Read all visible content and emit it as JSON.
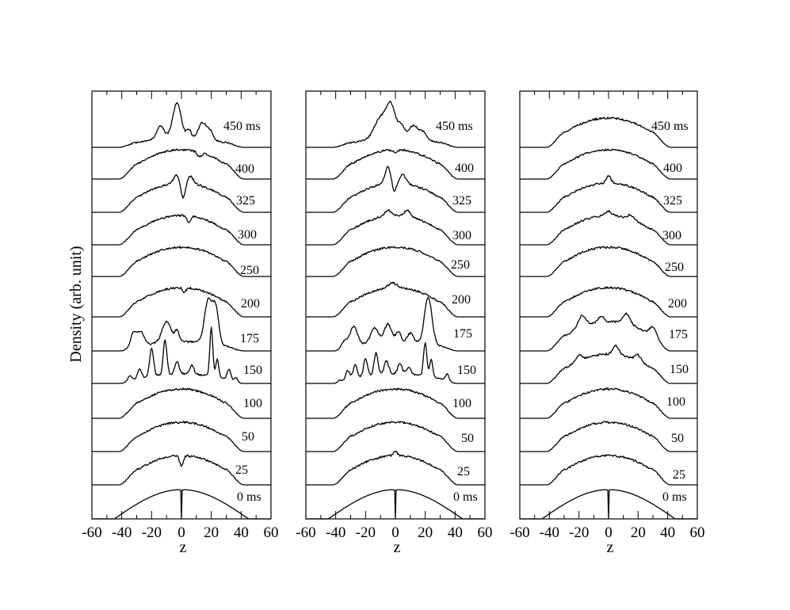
{
  "chart_data": {
    "type": "line",
    "ylabel": "Density (arb. unit)",
    "xlabel": "z",
    "xlim": [
      -60,
      60
    ],
    "xticks": [
      -60,
      -40,
      -20,
      0,
      20,
      40,
      60
    ],
    "tick_labels": [
      "-60",
      "-40",
      "-20",
      "0",
      "20",
      "40",
      "60"
    ],
    "grid": false,
    "panels": [
      {
        "traces": [
          {
            "time_ms": 0,
            "label": "0 ms",
            "profile": "initial-with-notch",
            "peaks": []
          },
          {
            "time_ms": 25,
            "label": "25",
            "profile": "smooth",
            "peaks": [
              {
                "z": 0,
                "a": -0.35,
                "w": 1.2
              }
            ]
          },
          {
            "time_ms": 50,
            "label": "50",
            "profile": "smooth",
            "peaks": []
          },
          {
            "time_ms": 100,
            "label": "100",
            "profile": "smooth",
            "peaks": []
          },
          {
            "time_ms": 150,
            "label": "150",
            "profile": "fragmented",
            "peaks": [
              {
                "z": -35,
                "a": 0.22,
                "w": 1.2
              },
              {
                "z": -28,
                "a": 0.3,
                "w": 1.3
              },
              {
                "z": -20,
                "a": 0.95,
                "w": 1.3
              },
              {
                "z": -11,
                "a": 1.2,
                "w": 1.2
              },
              {
                "z": -3,
                "a": 0.45,
                "w": 1.4
              },
              {
                "z": 7,
                "a": 0.3,
                "w": 1.5
              },
              {
                "z": 20,
                "a": 1.65,
                "w": 1.0
              },
              {
                "z": 24,
                "a": 0.6,
                "w": 1.0
              },
              {
                "z": 32,
                "a": 0.35,
                "w": 1.2
              },
              {
                "z": 37,
                "a": 0.3,
                "w": 1.0
              }
            ]
          },
          {
            "time_ms": 175,
            "label": "175",
            "profile": "fragmented",
            "peaks": [
              {
                "z": -32,
                "a": 0.5,
                "w": 2.2
              },
              {
                "z": -27,
                "a": 0.45,
                "w": 2.0
              },
              {
                "z": -10,
                "a": 0.7,
                "w": 3.0
              },
              {
                "z": -3,
                "a": 0.35,
                "w": 1.5
              },
              {
                "z": 18,
                "a": 1.5,
                "w": 2.5
              },
              {
                "z": 23,
                "a": 1.2,
                "w": 2.0
              }
            ]
          },
          {
            "time_ms": 200,
            "label": "200",
            "profile": "smooth",
            "peaks": [
              {
                "z": 2,
                "a": -0.15,
                "w": 1.2
              }
            ]
          },
          {
            "time_ms": 250,
            "label": "250",
            "profile": "smooth",
            "peaks": []
          },
          {
            "time_ms": 300,
            "label": "300",
            "profile": "smooth",
            "peaks": [
              {
                "z": 5,
                "a": -0.25,
                "w": 1.2
              }
            ]
          },
          {
            "time_ms": 325,
            "label": "325",
            "profile": "smooth",
            "peaks": [
              {
                "z": -3,
                "a": 0.3,
                "w": 2.0
              },
              {
                "z": 1,
                "a": -0.55,
                "w": 1.5
              },
              {
                "z": 6,
                "a": 0.25,
                "w": 2.0
              }
            ]
          },
          {
            "time_ms": 400,
            "label": "400",
            "profile": "smooth",
            "peaks": [
              {
                "z": 12,
                "a": -0.15,
                "w": 1.5
              }
            ]
          },
          {
            "time_ms": 450,
            "label": "450 ms",
            "profile": "fragmented",
            "peaks": [
              {
                "z": -14,
                "a": 0.45,
                "w": 2.5
              },
              {
                "z": -3,
                "a": 1.2,
                "w": 2.8
              },
              {
                "z": 5,
                "a": 0.3,
                "w": 1.5
              },
              {
                "z": 14,
                "a": 0.55,
                "w": 2.5
              },
              {
                "z": 19,
                "a": 0.3,
                "w": 2.0
              }
            ]
          }
        ]
      },
      {
        "traces": [
          {
            "time_ms": 0,
            "label": "0 ms",
            "profile": "initial-with-notch",
            "peaks": []
          },
          {
            "time_ms": 25,
            "label": "25",
            "profile": "smooth",
            "peaks": [
              {
                "z": 0,
                "a": 0.15,
                "w": 1.2
              }
            ]
          },
          {
            "time_ms": 50,
            "label": "50",
            "profile": "smooth",
            "peaks": []
          },
          {
            "time_ms": 100,
            "label": "100",
            "profile": "smooth",
            "peaks": []
          },
          {
            "time_ms": 150,
            "label": "150",
            "profile": "fragmented",
            "peaks": [
              {
                "z": -38,
                "a": 0.2,
                "w": 1.2
              },
              {
                "z": -32,
                "a": 0.3,
                "w": 1.3
              },
              {
                "z": -27,
                "a": 0.45,
                "w": 1.3
              },
              {
                "z": -20,
                "a": 0.6,
                "w": 1.3
              },
              {
                "z": -13,
                "a": 0.75,
                "w": 1.3
              },
              {
                "z": -6,
                "a": 0.45,
                "w": 1.5
              },
              {
                "z": 3,
                "a": 0.35,
                "w": 1.5
              },
              {
                "z": 9,
                "a": 0.25,
                "w": 1.5
              },
              {
                "z": 20,
                "a": 1.15,
                "w": 1.1
              },
              {
                "z": 24,
                "a": 0.6,
                "w": 1.0
              },
              {
                "z": 35,
                "a": 0.3,
                "w": 1.2
              }
            ]
          },
          {
            "time_ms": 175,
            "label": "175",
            "profile": "fragmented",
            "peaks": [
              {
                "z": -35,
                "a": 0.3,
                "w": 2.0
              },
              {
                "z": -28,
                "a": 0.65,
                "w": 2.5
              },
              {
                "z": -14,
                "a": 0.5,
                "w": 2.5
              },
              {
                "z": -5,
                "a": 0.6,
                "w": 2.5
              },
              {
                "z": 2,
                "a": 0.35,
                "w": 1.5
              },
              {
                "z": 10,
                "a": 0.3,
                "w": 2.0
              },
              {
                "z": 22,
                "a": 1.6,
                "w": 2.5
              }
            ]
          },
          {
            "time_ms": 200,
            "label": "200",
            "profile": "smooth",
            "peaks": [
              {
                "z": -2,
                "a": 0.15,
                "w": 3.0
              }
            ]
          },
          {
            "time_ms": 250,
            "label": "250",
            "profile": "smooth",
            "peaks": []
          },
          {
            "time_ms": 300,
            "label": "300",
            "profile": "smooth",
            "peaks": [
              {
                "z": -5,
                "a": 0.2,
                "w": 2.0
              },
              {
                "z": 8,
                "a": 0.2,
                "w": 2.0
              }
            ]
          },
          {
            "time_ms": 325,
            "label": "325",
            "profile": "smooth",
            "peaks": [
              {
                "z": -5,
                "a": 0.55,
                "w": 2.0
              },
              {
                "z": -1,
                "a": -0.35,
                "w": 1.3
              },
              {
                "z": 5,
                "a": 0.3,
                "w": 2.0
              }
            ]
          },
          {
            "time_ms": 400,
            "label": "400",
            "profile": "smooth",
            "peaks": [
              {
                "z": 0,
                "a": -0.1,
                "w": 1.2
              }
            ]
          },
          {
            "time_ms": 450,
            "label": "450 ms",
            "profile": "fragmented",
            "peaks": [
              {
                "z": -10,
                "a": 0.7,
                "w": 4.0
              },
              {
                "z": -3,
                "a": 1.05,
                "w": 3.0
              },
              {
                "z": 4,
                "a": 0.4,
                "w": 2.5
              },
              {
                "z": 12,
                "a": 0.45,
                "w": 2.5
              },
              {
                "z": 18,
                "a": 0.3,
                "w": 2.5
              }
            ]
          }
        ]
      },
      {
        "traces": [
          {
            "time_ms": 0,
            "label": "0 ms",
            "profile": "initial-with-notch",
            "peaks": []
          },
          {
            "time_ms": 25,
            "label": "25",
            "profile": "smooth",
            "peaks": []
          },
          {
            "time_ms": 50,
            "label": "50",
            "profile": "smooth",
            "peaks": []
          },
          {
            "time_ms": 100,
            "label": "100",
            "profile": "smooth",
            "peaks": []
          },
          {
            "time_ms": 150,
            "label": "150",
            "profile": "smooth",
            "peaks": [
              {
                "z": -20,
                "a": 0.2,
                "w": 2.0
              },
              {
                "z": 5,
                "a": 0.3,
                "w": 2.0
              },
              {
                "z": 20,
                "a": 0.2,
                "w": 2.0
              }
            ]
          },
          {
            "time_ms": 175,
            "label": "175",
            "profile": "smooth",
            "peaks": [
              {
                "z": -18,
                "a": 0.4,
                "w": 2.5
              },
              {
                "z": -5,
                "a": 0.2,
                "w": 2.0
              },
              {
                "z": 12,
                "a": 0.35,
                "w": 2.5
              },
              {
                "z": 30,
                "a": 0.3,
                "w": 2.5
              }
            ]
          },
          {
            "time_ms": 200,
            "label": "200",
            "profile": "smooth",
            "peaks": []
          },
          {
            "time_ms": 250,
            "label": "250",
            "profile": "smooth",
            "peaks": []
          },
          {
            "time_ms": 300,
            "label": "300",
            "profile": "smooth",
            "peaks": [
              {
                "z": 0,
                "a": 0.15,
                "w": 2.0
              },
              {
                "z": 15,
                "a": 0.15,
                "w": 2.0
              }
            ]
          },
          {
            "time_ms": 325,
            "label": "325",
            "profile": "smooth",
            "peaks": [
              {
                "z": 0,
                "a": 0.25,
                "w": 1.5
              }
            ]
          },
          {
            "time_ms": 400,
            "label": "400",
            "profile": "smooth",
            "peaks": []
          },
          {
            "time_ms": 450,
            "label": "450 ms",
            "profile": "smooth",
            "peaks": []
          }
        ]
      }
    ]
  }
}
